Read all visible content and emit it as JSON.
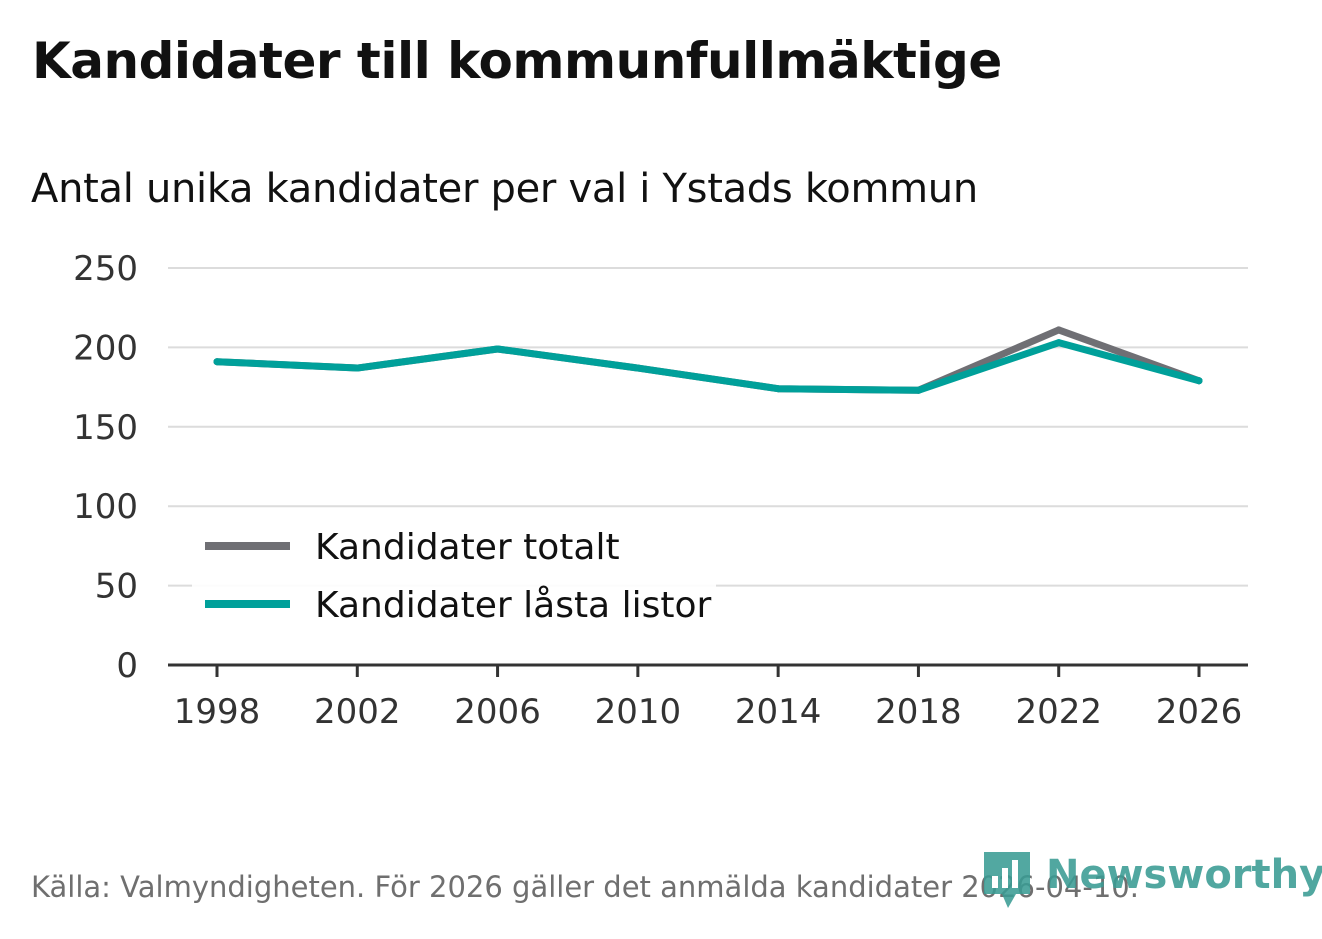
{
  "title": "Kandidater till kommunfullmäktige",
  "subtitle": "Antal unika kandidater per val i Ystads kommun",
  "source": "Källa: Valmyndigheten. För 2026 gäller det anmälda kandidater 2026-04-10.",
  "brand": {
    "name": "Newsworthy",
    "icon": "newsworthy-logo-icon"
  },
  "colors": {
    "total": "#6f6f74",
    "locked": "#00a09a",
    "grid": "#dcdcdc",
    "axis": "#333333",
    "brand": "#3a9c94"
  },
  "chart_data": {
    "type": "line",
    "title": "Kandidater till kommunfullmäktige",
    "subtitle": "Antal unika kandidater per val i Ystads kommun",
    "xlabel": "",
    "ylabel": "",
    "x": [
      "1998",
      "2002",
      "2006",
      "2010",
      "2014",
      "2018",
      "2022",
      "2026"
    ],
    "ylim": [
      0,
      250
    ],
    "yticks": [
      "0",
      "50",
      "100",
      "150",
      "200",
      "250"
    ],
    "grid": true,
    "legend_position": "bottom-left",
    "series": [
      {
        "name": "Kandidater totalt",
        "color": "#6f6f74",
        "values": [
          191,
          187,
          199,
          187,
          174,
          173,
          211,
          179
        ]
      },
      {
        "name": "Kandidater låsta listor",
        "color": "#00a09a",
        "values": [
          191,
          187,
          199,
          187,
          174,
          173,
          203,
          179
        ]
      }
    ]
  }
}
